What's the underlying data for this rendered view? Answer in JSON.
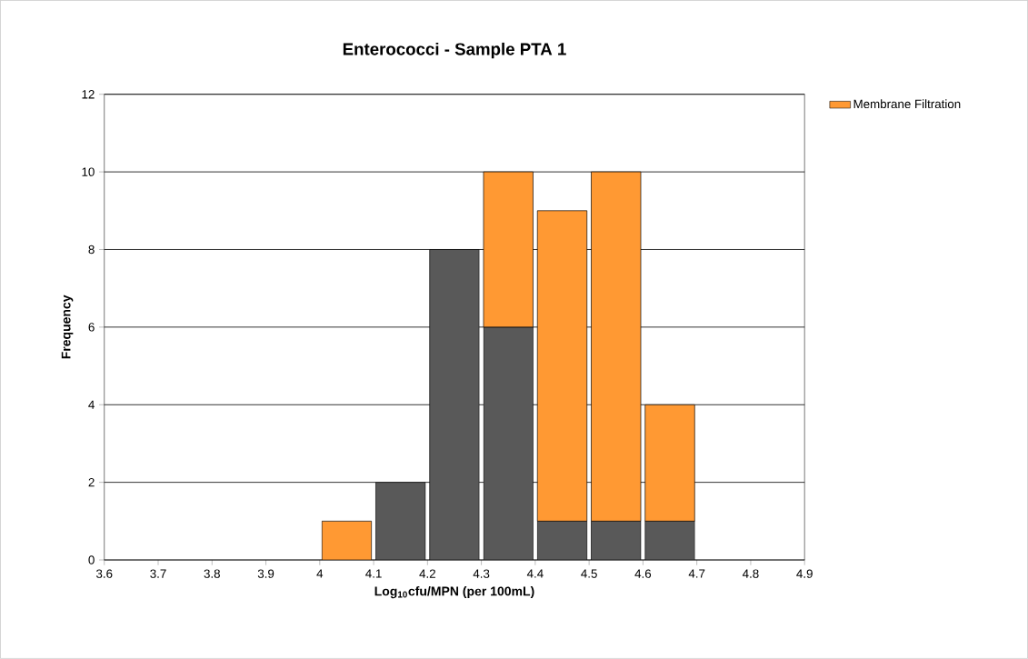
{
  "chart_data": {
    "type": "bar",
    "title": "Enterococci - Sample PTA 1",
    "xlabel": "Log$_{10}$cfu/MPN  (per 100mL)",
    "ylabel": "Frequency",
    "x": [
      4.05,
      4.15,
      4.25,
      4.35,
      4.45,
      4.55,
      4.65
    ],
    "stacked": true,
    "series": [
      {
        "color": "#595959",
        "values": [
          null,
          2,
          8,
          6,
          1,
          1,
          1
        ]
      },
      {
        "name": "Membrane Filtration",
        "color": "#ff9933",
        "values": [
          1,
          null,
          null,
          4,
          8,
          9,
          3
        ]
      }
    ],
    "xlim": [
      3.6,
      4.9
    ],
    "xticks": [
      3.6,
      3.7,
      3.8,
      3.9,
      4,
      4.1,
      4.2,
      4.3,
      4.4,
      4.5,
      4.6,
      4.7,
      4.8,
      4.9
    ],
    "ylim": [
      0,
      12
    ],
    "yticks": [
      0,
      2,
      4,
      6,
      8,
      10,
      12
    ],
    "grid": "y",
    "legend": "top right"
  }
}
